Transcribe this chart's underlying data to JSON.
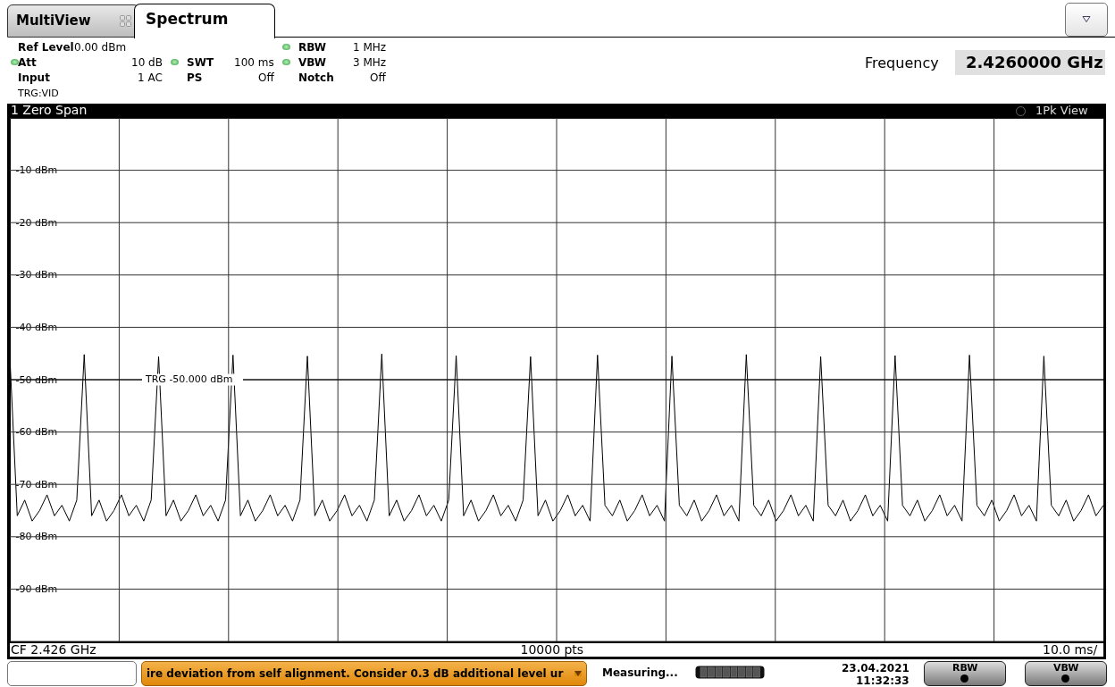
{
  "chart_data": {
    "type": "line",
    "title": "1 Zero Span",
    "annotations": [
      "MultiView",
      "Spectrum",
      "Ref Level",
      "0.00 dBm",
      "Att",
      "10 dB",
      "Input",
      "1 AC",
      "TRG:VID",
      "SWT",
      "100 ms",
      "PS",
      "Off",
      "RBW",
      "1 MHz",
      "VBW",
      "3 MHz",
      "Notch",
      "Off",
      "Frequency",
      "2.4260000 GHz",
      "1Pk View",
      "CF 2.426 GHz",
      "10000 pts",
      "10.0 ms/",
      "ire deviation from self alignment. Consider 0.3 dB additional level ur",
      "Measuring...",
      "23.04.2021",
      "11:32:33",
      "RBW",
      "VBW"
    ],
    "categories": [
      null,
      null,
      null,
      null,
      null,
      null,
      null,
      null,
      null,
      null,
      null,
      null,
      null,
      null,
      null,
      null,
      null,
      null,
      null,
      null,
      null,
      null,
      null,
      null,
      null,
      null,
      null,
      null,
      null,
      null,
      null,
      null,
      null,
      null,
      null,
      null,
      null,
      null,
      null,
      null,
      null,
      null,
      null,
      null,
      null,
      null,
      null,
      null,
      null,
      null,
      null,
      null,
      null,
      null,
      null,
      null,
      null,
      null,
      null,
      null,
      null,
      null,
      null,
      null,
      null,
      null,
      null,
      null,
      null,
      null,
      null,
      null,
      null,
      null,
      null,
      null,
      null,
      null,
      null,
      null,
      null,
      null,
      null,
      null,
      null,
      null,
      null,
      null,
      null,
      null,
      null,
      null,
      null,
      null,
      null,
      null,
      null,
      null,
      null,
      null,
      null,
      null,
      null,
      null,
      null,
      null,
      null,
      null,
      null,
      null,
      null,
      null,
      null,
      null,
      null,
      null,
      null,
      null,
      null,
      null,
      null,
      null,
      null,
      null,
      null,
      null,
      null,
      null,
      null,
      null,
      null,
      null,
      null,
      null,
      null,
      null,
      null,
      null,
      null,
      null,
      null,
      null,
      null,
      null,
      null,
      null,
      null,
      null
    ],
    "series": [
      {
        "color": "#000000",
        "values": [
          -45.5,
          -76,
          -73,
          -77,
          -75,
          -72,
          -76,
          -74,
          -77,
          -73,
          -45.2,
          -76,
          -73,
          -77,
          -75,
          -72,
          -76,
          -74,
          -77,
          -73,
          -45.6,
          -76,
          -73,
          -77,
          -75,
          -72,
          -76,
          -74,
          -77,
          -73,
          -45.3,
          -76,
          -73,
          -77,
          -75,
          -72,
          -76,
          -74,
          -77,
          -73,
          -45.5,
          -76,
          -73,
          -77,
          -75,
          -72,
          -76,
          -74,
          -77,
          -73,
          -45.1,
          -76,
          -73,
          -77,
          -75,
          -72,
          -76,
          -74,
          -77,
          -73,
          -45.4,
          -76,
          -73,
          -77,
          -75,
          -72,
          -76,
          -74,
          -77,
          -73,
          -45.6,
          -76,
          -73,
          -77,
          -75,
          -72,
          -76,
          -74,
          -77,
          -45.3,
          -74,
          -76,
          -73,
          -77,
          -75,
          -72,
          -76,
          -74,
          -77,
          -45.5,
          -74,
          -76,
          -73,
          -77,
          -75,
          -72,
          -76,
          -74,
          -77,
          -45.2,
          -74,
          -76,
          -73,
          -77,
          -75,
          -72,
          -76,
          -74,
          -77,
          -45.6,
          -74,
          -76,
          -73,
          -77,
          -75,
          -72,
          -76,
          -74,
          -77,
          -45.4,
          -74,
          -76,
          -73,
          -77,
          -75,
          -72,
          -76,
          -74,
          -77,
          -45.3,
          -74,
          -76,
          -73,
          -77,
          -75,
          -72,
          -76,
          -74,
          -77,
          -45.5,
          -74,
          -76,
          -73,
          -77,
          -75,
          -72,
          -76,
          -74
        ]
      }
    ],
    "ylim": [
      -100,
      0
    ],
    "yticks": [
      {
        "value": 0,
        "label": null
      },
      {
        "value": -10,
        "label": "-10 dBm"
      },
      {
        "value": -20,
        "label": "-20 dBm"
      },
      {
        "value": -30,
        "label": "-30 dBm"
      },
      {
        "value": -40,
        "label": "-40 dBm"
      },
      {
        "value": -50,
        "label": "-50 dBm"
      },
      {
        "value": -60,
        "label": "-60 dBm"
      },
      {
        "value": -70,
        "label": "-70 dBm"
      },
      {
        "value": -80,
        "label": "-80 dBm"
      },
      {
        "value": -90,
        "label": "-90 dBm"
      },
      {
        "value": -100,
        "label": null
      }
    ],
    "tick_labels": "y",
    "grid": true,
    "marker": "none",
    "line_style": "solid",
    "ref_lines": [
      {
        "axis": "y",
        "value": -50,
        "label": "TRG -50.000 dBm",
        "color": "#000000"
      }
    ]
  }
}
